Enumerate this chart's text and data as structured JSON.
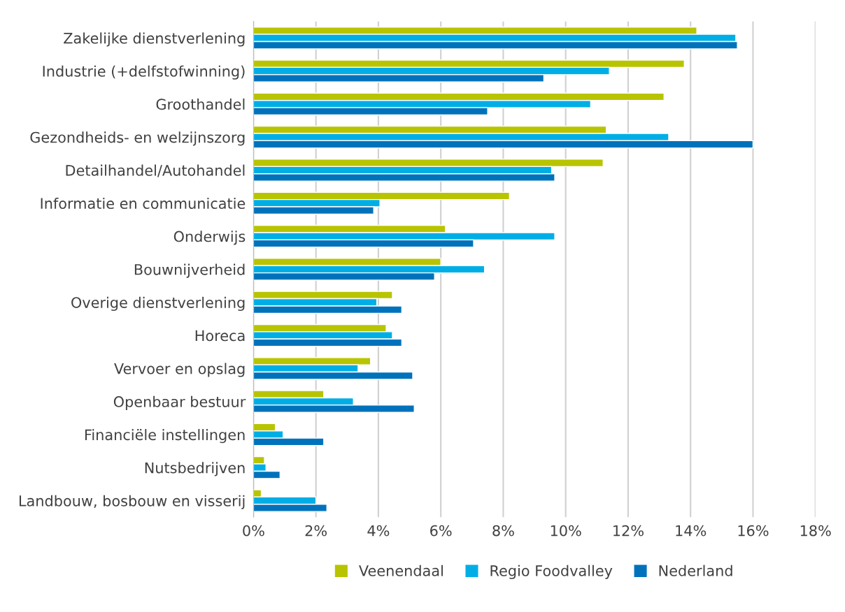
{
  "chart_data": {
    "type": "bar",
    "orientation": "horizontal",
    "categories": [
      "Zakelijke dienstverlening",
      "Industrie (+delfstofwinning)",
      "Groothandel",
      "Gezondheids- en welzijnszorg",
      "Detailhandel/Autohandel",
      "Informatie en communicatie",
      "Onderwijs",
      "Bouwnijverheid",
      "Overige dienstverlening",
      "Horeca",
      "Vervoer en opslag",
      "Openbaar bestuur",
      "Financiële instellingen",
      "Nutsbedrijven",
      "Landbouw, bosbouw en visserij"
    ],
    "series": [
      {
        "name": "Veenendaal",
        "color": "#b8c400",
        "values": [
          14.2,
          13.8,
          13.15,
          11.3,
          11.2,
          8.2,
          6.15,
          6.0,
          4.45,
          4.25,
          3.75,
          2.25,
          0.7,
          0.35,
          0.25
        ]
      },
      {
        "name": "Regio Foodvalley",
        "color": "#00aee6",
        "values": [
          15.45,
          11.4,
          10.8,
          13.3,
          9.55,
          4.05,
          9.65,
          7.4,
          3.95,
          4.45,
          3.35,
          3.2,
          0.95,
          0.4,
          2.0
        ]
      },
      {
        "name": "Nederland",
        "color": "#0072bb",
        "values": [
          15.5,
          9.3,
          7.5,
          16.0,
          9.65,
          3.85,
          7.05,
          5.8,
          4.75,
          4.75,
          5.1,
          5.15,
          2.25,
          0.85,
          2.35
        ]
      }
    ],
    "xlim": [
      0,
      18
    ],
    "xticks": [
      {
        "value": 0,
        "label": "0%"
      },
      {
        "value": 2,
        "label": "2%"
      },
      {
        "value": 4,
        "label": "4%"
      },
      {
        "value": 6,
        "label": "6%"
      },
      {
        "value": 8,
        "label": "8%"
      },
      {
        "value": 10,
        "label": "10%"
      },
      {
        "value": 12,
        "label": "12%"
      },
      {
        "value": 14,
        "label": "14%"
      },
      {
        "value": 16,
        "label": "16%"
      },
      {
        "value": 18,
        "label": "18%"
      }
    ],
    "grid": "x",
    "legend": "bottom"
  }
}
